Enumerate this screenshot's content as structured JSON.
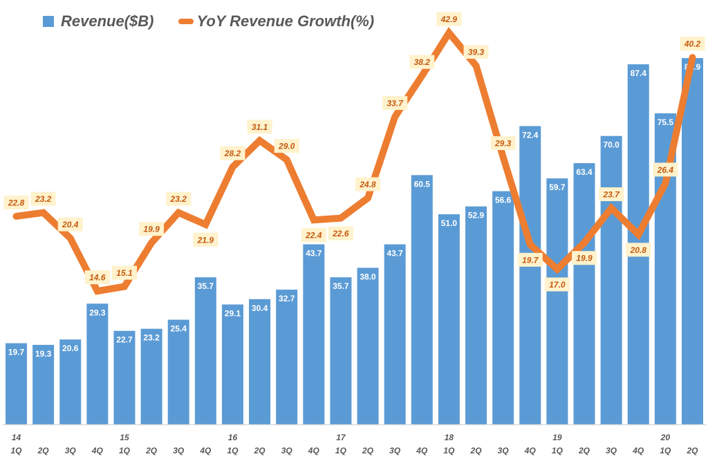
{
  "colors": {
    "bar": "#5B9BD5",
    "line": "#ED7D31",
    "label_bg": "#FFF2CC",
    "label_text": "#C55A11",
    "axis_text": "#595959"
  },
  "legend": {
    "bar_label": "Revenue($B)",
    "line_label": "YoY Revenue Growth(%)"
  },
  "chart_data": {
    "type": "bar",
    "title": "",
    "xlabel": "",
    "ylabel": "",
    "legend_position": "top-left",
    "grid": false,
    "categories": [
      "14 1Q",
      "14 2Q",
      "14 3Q",
      "14 4Q",
      "15 1Q",
      "15 2Q",
      "15 3Q",
      "15 4Q",
      "16 1Q",
      "16 2Q",
      "16 3Q",
      "16 4Q",
      "17 1Q",
      "17 2Q",
      "17 3Q",
      "17 4Q",
      "18 1Q",
      "18 2Q",
      "18 3Q",
      "18 4Q",
      "19 1Q",
      "19 2Q",
      "19 3Q",
      "19 4Q",
      "20 1Q",
      "20 2Q"
    ],
    "tick_quarters": [
      "1Q",
      "2Q",
      "3Q",
      "4Q",
      "1Q",
      "2Q",
      "3Q",
      "4Q",
      "1Q",
      "2Q",
      "3Q",
      "4Q",
      "1Q",
      "2Q",
      "3Q",
      "4Q",
      "1Q",
      "2Q",
      "3Q",
      "4Q",
      "1Q",
      "2Q",
      "3Q",
      "4Q",
      "1Q",
      "2Q"
    ],
    "tick_years": [
      "14",
      "",
      "",
      "",
      "15",
      "",
      "",
      "",
      "16",
      "",
      "",
      "",
      "17",
      "",
      "",
      "",
      "18",
      "",
      "",
      "",
      "19",
      "",
      "",
      "",
      "20",
      ""
    ],
    "series": [
      {
        "name": "Revenue($B)",
        "type": "bar",
        "axis": "primary",
        "values": [
          19.7,
          19.3,
          20.6,
          29.3,
          22.7,
          23.2,
          25.4,
          35.7,
          29.1,
          30.4,
          32.7,
          43.7,
          35.7,
          38.0,
          43.7,
          60.5,
          51.0,
          52.9,
          56.6,
          72.4,
          59.7,
          63.4,
          70.0,
          87.4,
          75.5,
          88.9
        ],
        "labels": [
          "19.7",
          "19.3",
          "20.6",
          "29.3",
          "22.7",
          "23.2",
          "25.4",
          "35.7",
          "29.1",
          "30.4",
          "32.7",
          "43.7",
          "35.7",
          "38.0",
          "43.7",
          "60.5",
          "51.0",
          "52.9",
          "56.6",
          "72.4",
          "59.7",
          "63.4",
          "70.0",
          "87.4",
          "75.5",
          "88.9"
        ]
      },
      {
        "name": "YoY Revenue Growth(%)",
        "type": "line",
        "axis": "secondary",
        "values": [
          22.8,
          23.2,
          20.4,
          14.6,
          15.1,
          19.9,
          23.2,
          21.9,
          28.2,
          31.1,
          29.0,
          22.4,
          22.6,
          24.8,
          33.7,
          38.2,
          42.9,
          39.3,
          29.3,
          19.7,
          17.0,
          19.9,
          23.7,
          20.8,
          26.4,
          40.2
        ],
        "labels": [
          "22.8",
          "23.2",
          "20.4",
          "14.6",
          "15.1",
          "19.9",
          "23.2",
          "21.9",
          "28.2",
          "31.1",
          "29.0",
          "22.4",
          "22.6",
          "24.8",
          "33.7",
          "38.2",
          "42.9",
          "39.3",
          "29.3",
          "19.7",
          "17.0",
          "19.9",
          "23.7",
          "20.8",
          "26.4",
          "40.2"
        ],
        "label_side": [
          "above",
          "above",
          "above",
          "above",
          "above",
          "above",
          "above",
          "below",
          "above",
          "above",
          "above",
          "below",
          "below",
          "above",
          "above",
          "above",
          "above",
          "above",
          "above",
          "below",
          "below",
          "below",
          "above",
          "below",
          "above",
          "above"
        ]
      }
    ],
    "ylim": [
      0,
      103
    ],
    "y2lim": [
      0,
      46.5
    ]
  }
}
